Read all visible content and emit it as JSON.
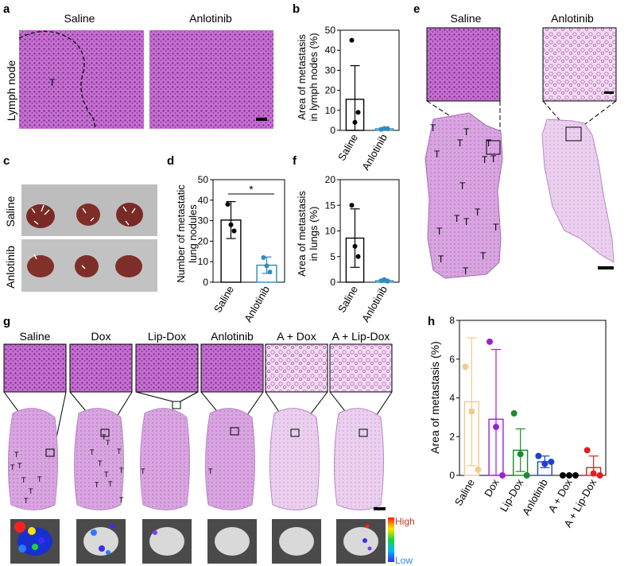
{
  "panels": {
    "a": {
      "letter": "a",
      "row_label": "Lymph node",
      "col_labels": [
        "Saline",
        "Anlotinib"
      ],
      "tumor_mark": "T"
    },
    "b": {
      "letter": "b",
      "ylabel_line1": "Area of metastasis",
      "ylabel_line2": "in lymph nodes (%)"
    },
    "c": {
      "letter": "c",
      "row_labels": [
        "Saline",
        "Anlotinib"
      ]
    },
    "d": {
      "letter": "d",
      "ylabel_line1": "Number of metastatic",
      "ylabel_line2": "lung nodules",
      "significance": "*"
    },
    "e": {
      "letter": "e",
      "col_labels": [
        "Saline",
        "Anlotinib"
      ],
      "tumor_mark": "T"
    },
    "f": {
      "letter": "f",
      "ylabel_line1": "Area of metastasis",
      "ylabel_line2": "in lungs (%)"
    },
    "g": {
      "letter": "g",
      "col_labels": [
        "Saline",
        "Dox",
        "Lip-Dox",
        "Anlotinib",
        "A + Dox",
        "A + Lip-Dox"
      ],
      "scale_high": "High",
      "scale_low": "Low",
      "tumor_mark": "T"
    },
    "h": {
      "letter": "h",
      "ylabel": "Area of metastasis (%)"
    }
  },
  "chart_data": [
    {
      "panel": "b",
      "type": "bar",
      "categories": [
        "Saline",
        "Anlotinib"
      ],
      "values": [
        15.5,
        0.8
      ],
      "error": [
        16.8,
        0.6
      ],
      "points": [
        [
          45,
          4,
          9
        ],
        [
          0.5,
          1,
          0.9
        ]
      ],
      "ylim": [
        0,
        50
      ],
      "yticks": [
        0,
        10,
        20,
        30,
        40,
        50
      ],
      "colors": [
        "#000000",
        "#2e8bc0"
      ]
    },
    {
      "panel": "d",
      "type": "bar",
      "categories": [
        "Saline",
        "Anlotinib"
      ],
      "values": [
        30.3,
        8.3
      ],
      "error": [
        9.0,
        4.0
      ],
      "points": [
        [
          38,
          28,
          25
        ],
        [
          12,
          8,
          5
        ]
      ],
      "ylim": [
        0,
        50
      ],
      "yticks": [
        0,
        10,
        20,
        30,
        40,
        50
      ],
      "colors": [
        "#000000",
        "#2e8bc0"
      ]
    },
    {
      "panel": "f",
      "type": "bar",
      "categories": [
        "Saline",
        "Anlotinib"
      ],
      "values": [
        8.6,
        0.3
      ],
      "error": [
        5.7,
        0.3
      ],
      "points": [
        [
          15,
          7,
          5
        ],
        [
          0.3,
          0.5,
          0.2
        ]
      ],
      "ylim": [
        0,
        20
      ],
      "yticks": [
        0,
        5,
        10,
        15,
        20
      ],
      "colors": [
        "#000000",
        "#2e8bc0"
      ]
    },
    {
      "panel": "h",
      "type": "bar",
      "categories": [
        "Saline",
        "Dox",
        "Lip-Dox",
        "Anlotinib",
        "A + Dox",
        "A + Lip-Dox"
      ],
      "values": [
        3.8,
        2.9,
        1.3,
        0.7,
        0.0,
        0.4
      ],
      "error": [
        3.3,
        3.6,
        1.1,
        0.3,
        0.0,
        0.6
      ],
      "points": [
        [
          5.6,
          3.3,
          0.3
        ],
        [
          6.9,
          2.5,
          0
        ],
        [
          3.2,
          1.1,
          0
        ],
        [
          1.0,
          0.6,
          0.7
        ],
        [
          0,
          0,
          0
        ],
        [
          1.3,
          0.1,
          0
        ]
      ],
      "ylim": [
        0,
        8
      ],
      "yticks": [
        0,
        2,
        4,
        6,
        8
      ],
      "colors": [
        "#f5c98a",
        "#a020d0",
        "#1d8a2a",
        "#1f3fcf",
        "#000000",
        "#e02020"
      ]
    }
  ]
}
